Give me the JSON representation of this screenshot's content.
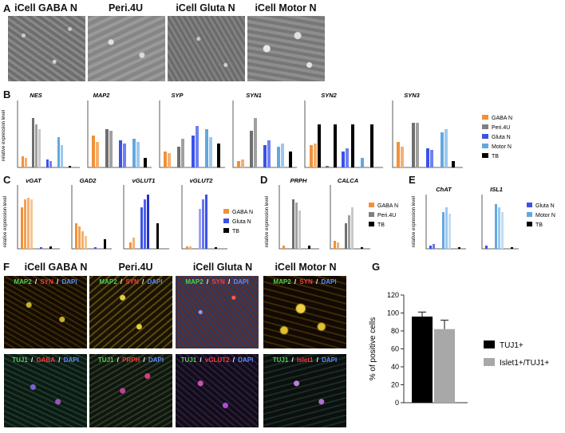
{
  "panels": {
    "A": "A",
    "B": "B",
    "C": "C",
    "D": "D",
    "E": "E",
    "F": "F",
    "G": "G"
  },
  "panelA": {
    "titles": [
      "iCell GABA N",
      "Peri.4U",
      "iCell Gluta N",
      "iCell Motor N"
    ]
  },
  "panelB": {
    "genes": [
      "NES",
      "MAP2",
      "SYP",
      "SYN1",
      "SYN2",
      "SYN3"
    ],
    "ylabel": "relative expression level",
    "legend": [
      "GABA N",
      "Peri.4U",
      "Gluta N",
      "Motor N",
      "TB"
    ]
  },
  "panelC": {
    "genes": [
      "vGAT",
      "GAD2",
      "vGLUT1",
      "vGLUT2"
    ],
    "ylabel": "relative expression level",
    "legend": [
      "GABA N",
      "Gluta N",
      "TB"
    ]
  },
  "panelD": {
    "genes": [
      "PRPH",
      "CALCA"
    ],
    "ylabel": "relative expression level",
    "legend": [
      "GABA N",
      "Peri.4U",
      "TB"
    ]
  },
  "panelE": {
    "genes": [
      "ChAT",
      "ISL1"
    ],
    "ylabel": "relative expression level",
    "legend": [
      "Gluta N",
      "Motor N",
      "TB"
    ]
  },
  "panelF": {
    "titles": [
      "iCell GABA N",
      "Peri.4U",
      "iCell Gluta N",
      "iCell Motor N"
    ],
    "top_stain": [
      "MAP2",
      " / ",
      "SYN",
      " / ",
      "DAPI"
    ],
    "bottom_stains": [
      [
        "TUJ1",
        " / ",
        "GABA",
        " / ",
        "DAPI"
      ],
      [
        "TUJ1",
        " / ",
        "PRPH",
        " / ",
        "DAPI"
      ],
      [
        "TUJ1",
        " / ",
        "vGLUT2",
        " / ",
        "DAPI"
      ],
      [
        "TUJ1",
        " / ",
        "Islet1",
        " / ",
        "DAPI"
      ]
    ]
  },
  "colors": {
    "gaba": "#f0913a",
    "peri": "#808080",
    "gluta": "#3a52e8",
    "motor": "#62a8e0",
    "tb": "#000000",
    "islet_bar": "#a8a8a8"
  },
  "chart_data": [
    {
      "panel": "G",
      "type": "bar",
      "categories": [
        "TUJ1+",
        "Islet1+/TUJ1+"
      ],
      "values": [
        96,
        82
      ],
      "errors": [
        5,
        10
      ],
      "ylabel": "% of positive cells",
      "ylim": [
        0,
        120
      ],
      "yticks": [
        "0",
        "20",
        "40",
        "60",
        "80",
        "100",
        "120"
      ],
      "legend": [
        "TUJ1+",
        "Islet1+/TUJ1+"
      ]
    }
  ]
}
